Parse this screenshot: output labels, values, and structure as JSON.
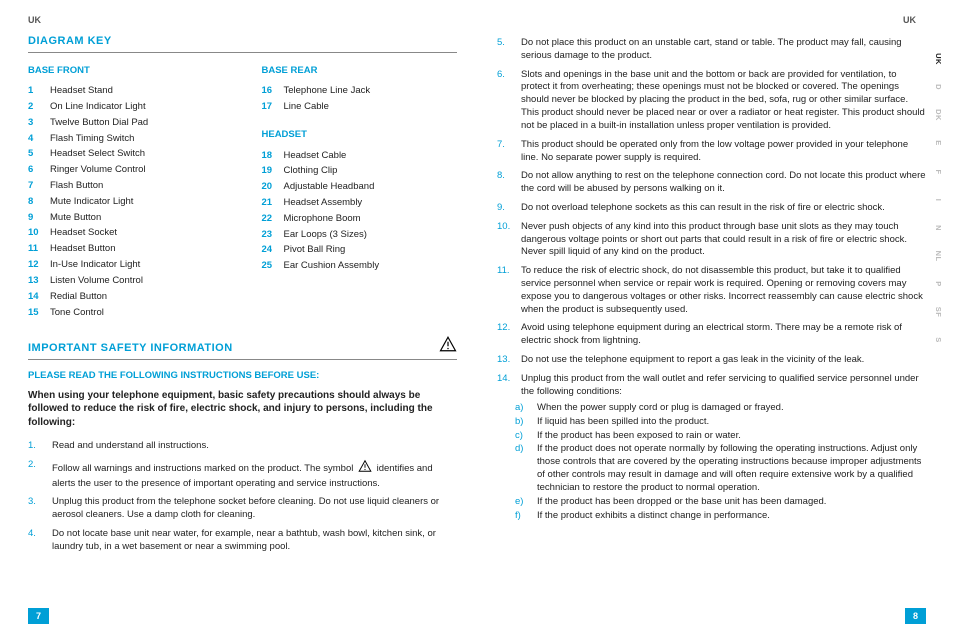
{
  "header": {
    "left": "UK",
    "right": "UK"
  },
  "page_left": "7",
  "page_right": "8",
  "langtabs": [
    "UK",
    "D",
    "DK",
    "E",
    "F",
    "I",
    "N",
    "NL",
    "P",
    "SF",
    "S"
  ],
  "active_lang_index": 0,
  "diagram_key_title": "DIAGRAM KEY",
  "safety_title": "IMPORTANT SAFETY INFORMATION",
  "safety_sub": "PLEASE READ THE FOLLOWING INSTRUCTIONS BEFORE USE:",
  "safety_intro": "When using your telephone equipment, basic safety precautions should always be followed to reduce the risk of fire, electric shock, and injury to persons, including the following:",
  "key_groups": [
    {
      "heading": "BASE FRONT",
      "items": [
        {
          "n": "1",
          "t": "Headset Stand"
        },
        {
          "n": "2",
          "t": "On Line Indicator Light"
        },
        {
          "n": "3",
          "t": "Twelve Button Dial Pad"
        },
        {
          "n": "4",
          "t": "Flash Timing Switch"
        },
        {
          "n": "5",
          "t": "Headset Select Switch"
        },
        {
          "n": "6",
          "t": "Ringer Volume Control"
        },
        {
          "n": "7",
          "t": "Flash Button"
        },
        {
          "n": "8",
          "t": "Mute Indicator Light"
        },
        {
          "n": "9",
          "t": "Mute Button"
        },
        {
          "n": "10",
          "t": "Headset Socket"
        },
        {
          "n": "11",
          "t": "Headset Button"
        },
        {
          "n": "12",
          "t": "In-Use Indicator Light"
        },
        {
          "n": "13",
          "t": "Listen Volume Control"
        },
        {
          "n": "14",
          "t": "Redial Button"
        },
        {
          "n": "15",
          "t": "Tone Control"
        }
      ]
    },
    {
      "heading": "BASE REAR",
      "items": [
        {
          "n": "16",
          "t": "Telephone Line Jack"
        },
        {
          "n": "17",
          "t": "Line Cable"
        }
      ]
    },
    {
      "heading": "HEADSET",
      "items": [
        {
          "n": "18",
          "t": "Headset Cable"
        },
        {
          "n": "19",
          "t": "Clothing Clip"
        },
        {
          "n": "20",
          "t": "Adjustable Headband"
        },
        {
          "n": "21",
          "t": "Headset Assembly"
        },
        {
          "n": "22",
          "t": "Microphone Boom"
        },
        {
          "n": "23",
          "t": "Ear Loops (3 Sizes)"
        },
        {
          "n": "24",
          "t": "Pivot Ball Ring"
        },
        {
          "n": "25",
          "t": "Ear Cushion Assembly"
        }
      ]
    }
  ],
  "safety_left": [
    {
      "n": "1.",
      "t": "Read and understand all instructions."
    },
    {
      "n": "2.",
      "t": "Follow all warnings and instructions marked on the product. The symbol ",
      "warn": true,
      "t2": " identifies and alerts the user to the presence of important operating and service instructions."
    },
    {
      "n": "3.",
      "t": "Unplug this product from the telephone socket before cleaning. Do not use liquid cleaners or aerosol cleaners. Use a damp cloth for cleaning."
    },
    {
      "n": "4.",
      "t": "Do not locate base unit near water, for example, near a bathtub, wash bowl, kitchen sink, or laundry tub, in a wet basement or near a swimming pool."
    }
  ],
  "safety_right": [
    {
      "n": "5.",
      "t": "Do not place this product on an unstable cart, stand or table. The product may fall, causing serious damage to the product."
    },
    {
      "n": "6.",
      "t": "Slots and openings in the base unit and the bottom or back are provided for ventilation, to protect it from overheating; these openings must not be blocked or covered. The openings should never be blocked by placing the product in the bed, sofa, rug or other similar surface. This product should never be placed near or over a radiator or heat register. This product should not be placed in a built-in installation unless proper ventilation is provided."
    },
    {
      "n": "7.",
      "t": "This product should be operated only from the low voltage power provided in your telephone line. No separate power supply is required."
    },
    {
      "n": "8.",
      "t": "Do not allow anything to rest on the telephone connection cord. Do not locate this product where the cord will be abused by persons walking on it."
    },
    {
      "n": "9.",
      "t": "Do not overload telephone sockets as this can result in the risk of fire or electric shock."
    },
    {
      "n": "10.",
      "t": "Never push objects of any kind into this product through base unit slots as they may touch dangerous voltage points or short out parts that could result in a risk of fire or electric shock. Never spill liquid of any kind on the product."
    },
    {
      "n": "11.",
      "t": "To reduce the risk of electric shock, do not disassemble this product, but take it to qualified service personnel when service or repair work is required. Opening or removing covers may expose you to dangerous voltages or other risks. Incorrect reassembly can cause electric shock when the product is subsequently used."
    },
    {
      "n": "12.",
      "t": "Avoid using telephone equipment during an electrical storm. There may be a remote risk of electric shock from lightning."
    },
    {
      "n": "13.",
      "t": "Do not use the telephone equipment to report a gas leak in the vicinity of the leak."
    },
    {
      "n": "14.",
      "t": "Unplug this product from the wall outlet and refer servicing to qualified service personnel under the following conditions:"
    }
  ],
  "safety_sub_items": [
    {
      "l": "a)",
      "t": "When the power supply cord or plug is damaged or frayed."
    },
    {
      "l": "b)",
      "t": " If liquid has been spilled into the product."
    },
    {
      "l": "c)",
      "t": "If the product has been exposed to rain or water."
    },
    {
      "l": "d)",
      "t": "If the product does not operate normally by following the operating instructions. Adjust only those controls that are covered by the operating instructions because improper adjustments of other controls may result in damage and will often require extensive work by a qualified technician to restore the product to normal operation."
    },
    {
      "l": "e)",
      "t": "If the product has been dropped or the base unit has been damaged."
    },
    {
      "l": "f)",
      "t": "If the product exhibits a distinct change in performance."
    }
  ]
}
